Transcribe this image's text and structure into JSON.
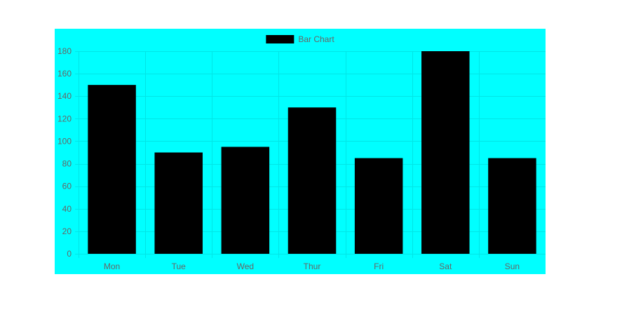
{
  "chart_data": {
    "type": "bar",
    "categories": [
      "Mon",
      "Tue",
      "Wed",
      "Thur",
      "Fri",
      "Sat",
      "Sun"
    ],
    "series": [
      {
        "name": "Bar Chart",
        "values": [
          150,
          90,
          95,
          130,
          85,
          180,
          85
        ],
        "color": "#000000"
      }
    ],
    "ylim": [
      0,
      180
    ],
    "yticks": [
      0,
      20,
      40,
      60,
      80,
      100,
      120,
      140,
      160,
      180
    ],
    "grid": true,
    "legend_position": "top-center",
    "background_color": "#00ffff",
    "grid_color": "#00e6e6",
    "tick_label_color": "#666666"
  }
}
